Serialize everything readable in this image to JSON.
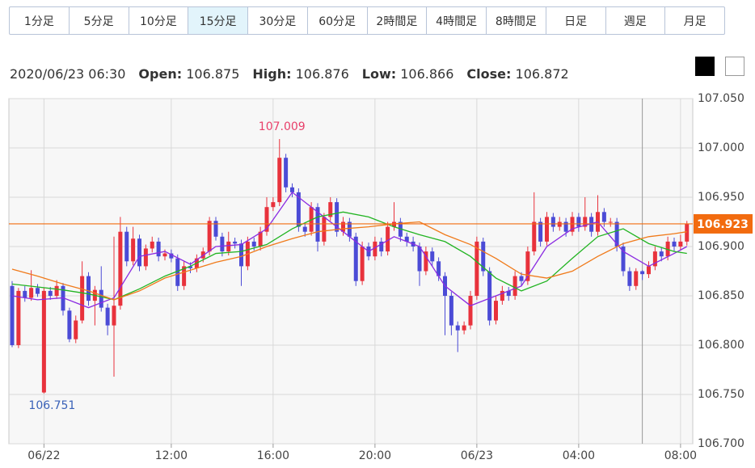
{
  "tabs": {
    "items": [
      "1分足",
      "5分足",
      "10分足",
      "15分足",
      "30分足",
      "60分足",
      "2時間足",
      "4時間足",
      "8時間足",
      "日足",
      "週足",
      "月足"
    ],
    "active": "15分足"
  },
  "info": {
    "datetime": "2020/06/23 06:30",
    "labels": [
      "Open:",
      "High:",
      "Low:",
      "Close:"
    ]
  },
  "chart_data": {
    "type": "candlestick",
    "up_color": "#e8323c",
    "down_color": "#4b4bd6",
    "x": [
      "06/22 05:45",
      "06/22 06:00",
      "06/22 06:15",
      "06/22 06:30",
      "06/22 06:45",
      "06/22 07:00",
      "06/22 07:15",
      "06/22 07:30",
      "06/22 07:45",
      "06/22 08:00",
      "06/22 08:15",
      "06/22 08:30",
      "06/22 08:45",
      "06/22 09:00",
      "06/22 09:15",
      "06/22 09:30",
      "06/22 09:45",
      "06/22 10:00",
      "06/22 10:15",
      "06/22 10:30",
      "06/22 10:45",
      "06/22 11:00",
      "06/22 11:15",
      "06/22 11:30",
      "06/22 11:45",
      "06/22 12:00",
      "06/22 12:15",
      "06/22 12:30",
      "06/22 12:45",
      "06/22 13:00",
      "06/22 13:15",
      "06/22 13:30",
      "06/22 13:45",
      "06/22 14:00",
      "06/22 14:15",
      "06/22 14:30",
      "06/22 14:45",
      "06/22 15:00",
      "06/22 15:15",
      "06/22 15:30",
      "06/22 15:45",
      "06/22 16:00",
      "06/22 16:15",
      "06/22 16:30",
      "06/22 16:45",
      "06/22 17:00",
      "06/22 17:15",
      "06/22 17:30",
      "06/22 17:45",
      "06/22 18:00",
      "06/22 18:15",
      "06/22 18:30",
      "06/22 18:45",
      "06/22 19:00",
      "06/22 19:15",
      "06/22 19:30",
      "06/22 19:45",
      "06/22 20:00",
      "06/22 20:15",
      "06/22 20:30",
      "06/22 20:45",
      "06/22 21:00",
      "06/22 21:15",
      "06/22 21:30",
      "06/22 21:45",
      "06/22 22:00",
      "06/22 22:15",
      "06/22 22:30",
      "06/22 22:45",
      "06/22 23:00",
      "06/22 23:15",
      "06/22 23:30",
      "06/22 23:45",
      "06/23 00:00",
      "06/23 00:15",
      "06/23 00:30",
      "06/23 00:45",
      "06/23 01:00",
      "06/23 01:15",
      "06/23 01:30",
      "06/23 01:45",
      "06/23 02:00",
      "06/23 02:15",
      "06/23 02:30",
      "06/23 02:45",
      "06/23 03:00",
      "06/23 03:15",
      "06/23 03:30",
      "06/23 03:45",
      "06/23 04:00",
      "06/23 04:15",
      "06/23 04:30",
      "06/23 04:45",
      "06/23 05:00",
      "06/23 05:15",
      "06/23 05:30",
      "06/23 05:45",
      "06/23 06:00",
      "06/23 06:15",
      "06/23 06:30",
      "06/23 06:45",
      "06/23 07:00",
      "06/23 07:15",
      "06/23 07:30",
      "06/23 07:45",
      "06/23 08:00",
      "06/23 08:15"
    ],
    "candles": [
      [
        106.86,
        106.865,
        106.798,
        106.8
      ],
      [
        106.8,
        106.858,
        106.797,
        106.855
      ],
      [
        106.855,
        106.86,
        106.844,
        106.848
      ],
      [
        106.848,
        106.876,
        106.845,
        106.858
      ],
      [
        106.858,
        106.862,
        106.849,
        106.852
      ],
      [
        106.752,
        106.858,
        106.751,
        106.855
      ],
      [
        106.855,
        106.859,
        106.846,
        106.85
      ],
      [
        106.85,
        106.866,
        106.847,
        106.86
      ],
      [
        106.86,
        106.863,
        106.83,
        106.835
      ],
      [
        106.835,
        106.838,
        106.803,
        106.806
      ],
      [
        106.806,
        106.83,
        106.802,
        106.825
      ],
      [
        106.825,
        106.885,
        106.822,
        106.87
      ],
      [
        106.87,
        106.874,
        106.84,
        106.845
      ],
      [
        106.845,
        106.86,
        106.82,
        106.856
      ],
      [
        106.856,
        106.88,
        106.834,
        106.838
      ],
      [
        106.838,
        106.842,
        106.81,
        106.82
      ],
      [
        106.82,
        106.91,
        106.768,
        106.84
      ],
      [
        106.84,
        106.93,
        106.836,
        106.915
      ],
      [
        106.915,
        106.92,
        106.88,
        106.885
      ],
      [
        106.885,
        106.92,
        106.881,
        106.908
      ],
      [
        106.908,
        106.912,
        106.875,
        106.88
      ],
      [
        106.88,
        106.902,
        106.876,
        106.898
      ],
      [
        106.898,
        106.91,
        106.894,
        106.905
      ],
      [
        106.905,
        106.909,
        106.885,
        106.89
      ],
      [
        106.89,
        106.897,
        106.886,
        106.893
      ],
      [
        106.893,
        106.897,
        106.884,
        106.888
      ],
      [
        106.888,
        106.892,
        106.855,
        106.86
      ],
      [
        106.86,
        106.885,
        106.856,
        106.88
      ],
      [
        106.88,
        106.884,
        106.873,
        106.878
      ],
      [
        106.878,
        106.892,
        106.874,
        106.888
      ],
      [
        106.888,
        106.899,
        106.884,
        106.895
      ],
      [
        106.895,
        106.93,
        106.891,
        106.926
      ],
      [
        106.926,
        106.93,
        106.906,
        106.91
      ],
      [
        106.91,
        106.914,
        106.89,
        106.895
      ],
      [
        106.895,
        106.915,
        106.891,
        106.905
      ],
      [
        106.905,
        106.909,
        106.898,
        106.903
      ],
      [
        106.903,
        106.907,
        106.86,
        106.88
      ],
      [
        106.88,
        106.91,
        106.876,
        106.905
      ],
      [
        106.905,
        106.909,
        106.896,
        106.9
      ],
      [
        106.9,
        106.92,
        106.896,
        106.915
      ],
      [
        106.915,
        106.95,
        106.911,
        106.94
      ],
      [
        106.94,
        106.95,
        106.936,
        106.945
      ],
      [
        106.945,
        107.009,
        106.941,
        106.99
      ],
      [
        106.99,
        106.994,
        106.955,
        106.96
      ],
      [
        106.96,
        106.964,
        106.95,
        106.955
      ],
      [
        106.955,
        106.959,
        106.915,
        106.92
      ],
      [
        106.92,
        106.924,
        106.91,
        106.915
      ],
      [
        106.915,
        106.945,
        106.911,
        106.94
      ],
      [
        106.94,
        106.944,
        106.895,
        106.905
      ],
      [
        106.905,
        106.934,
        106.901,
        106.93
      ],
      [
        106.93,
        106.95,
        106.926,
        106.945
      ],
      [
        106.945,
        106.949,
        106.91,
        106.915
      ],
      [
        106.915,
        106.93,
        106.911,
        106.925
      ],
      [
        106.925,
        106.929,
        106.905,
        106.91
      ],
      [
        106.91,
        106.914,
        106.86,
        106.865
      ],
      [
        106.865,
        106.905,
        106.861,
        106.9
      ],
      [
        106.9,
        106.904,
        106.886,
        106.89
      ],
      [
        106.89,
        106.91,
        106.886,
        106.905
      ],
      [
        106.905,
        106.909,
        106.89,
        106.895
      ],
      [
        106.895,
        106.925,
        106.891,
        106.92
      ],
      [
        106.92,
        106.945,
        106.916,
        106.925
      ],
      [
        106.925,
        106.929,
        106.905,
        106.91
      ],
      [
        106.91,
        106.914,
        106.9,
        106.905
      ],
      [
        106.905,
        106.91,
        106.895,
        106.9
      ],
      [
        106.9,
        106.904,
        106.86,
        106.875
      ],
      [
        106.875,
        106.9,
        106.871,
        106.895
      ],
      [
        106.895,
        106.899,
        106.88,
        106.885
      ],
      [
        106.885,
        106.889,
        106.865,
        106.87
      ],
      [
        106.87,
        106.874,
        106.81,
        106.85
      ],
      [
        106.85,
        106.854,
        106.81,
        106.82
      ],
      [
        106.82,
        106.824,
        106.793,
        106.815
      ],
      [
        106.815,
        106.824,
        106.811,
        106.82
      ],
      [
        106.82,
        106.855,
        106.816,
        106.85
      ],
      [
        106.85,
        106.91,
        106.846,
        106.905
      ],
      [
        106.905,
        106.909,
        106.87,
        106.875
      ],
      [
        106.875,
        106.879,
        106.82,
        106.825
      ],
      [
        106.825,
        106.85,
        106.821,
        106.845
      ],
      [
        106.845,
        106.86,
        106.841,
        106.855
      ],
      [
        106.855,
        106.859,
        106.845,
        106.85
      ],
      [
        106.85,
        106.875,
        106.846,
        106.87
      ],
      [
        106.87,
        106.874,
        106.86,
        106.865
      ],
      [
        106.865,
        106.9,
        106.861,
        106.895
      ],
      [
        106.895,
        106.955,
        106.891,
        106.925
      ],
      [
        106.925,
        106.929,
        106.9,
        106.905
      ],
      [
        106.905,
        106.935,
        106.901,
        106.93
      ],
      [
        106.93,
        106.934,
        106.915,
        106.92
      ],
      [
        106.92,
        106.93,
        106.916,
        106.925
      ],
      [
        106.925,
        106.929,
        106.91,
        106.915
      ],
      [
        106.915,
        106.935,
        106.911,
        106.93
      ],
      [
        106.93,
        106.934,
        106.915,
        106.92
      ],
      [
        106.92,
        106.95,
        106.916,
        106.93
      ],
      [
        106.93,
        106.934,
        106.91,
        106.915
      ],
      [
        106.915,
        106.952,
        106.911,
        106.935
      ],
      [
        106.935,
        106.939,
        106.92,
        106.925
      ],
      [
        106.925,
        106.929,
        106.92,
        106.925
      ],
      [
        106.925,
        106.929,
        106.895,
        106.9
      ],
      [
        106.9,
        106.904,
        106.87,
        106.875
      ],
      [
        106.875,
        106.879,
        106.855,
        106.86
      ],
      [
        106.86,
        106.878,
        106.856,
        106.875
      ],
      [
        106.875,
        106.876,
        106.866,
        106.872
      ],
      [
        106.872,
        106.885,
        106.868,
        106.88
      ],
      [
        106.88,
        106.9,
        106.876,
        106.895
      ],
      [
        106.895,
        106.899,
        106.885,
        106.89
      ],
      [
        106.89,
        106.91,
        106.886,
        106.905
      ],
      [
        106.905,
        106.909,
        106.895,
        106.9
      ],
      [
        106.9,
        106.912,
        106.896,
        106.905
      ],
      [
        106.905,
        106.926,
        106.901,
        106.923
      ]
    ],
    "series": [
      {
        "color": "#8b2be2",
        "x": [
          "06/22 05:45",
          "06/22 06:45",
          "06/22 07:45",
          "06/22 08:45",
          "06/22 09:45",
          "06/22 10:45",
          "06/22 11:45",
          "06/22 12:45",
          "06/22 13:45",
          "06/22 14:45",
          "06/22 15:45",
          "06/22 16:45",
          "06/22 17:45",
          "06/22 18:45",
          "06/22 19:45",
          "06/22 20:45",
          "06/22 21:45",
          "06/22 22:45",
          "06/22 23:45",
          "06/23 00:45",
          "06/23 01:45",
          "06/23 02:45",
          "06/23 03:45",
          "06/23 04:45",
          "06/23 05:45",
          "06/23 06:45",
          "06/23 07:45",
          "06/23 08:15"
        ],
        "values": [
          106.85,
          106.846,
          106.848,
          106.838,
          106.848,
          106.89,
          106.895,
          106.882,
          106.9,
          106.902,
          106.918,
          106.955,
          106.935,
          106.915,
          106.895,
          106.91,
          106.9,
          106.86,
          106.84,
          106.85,
          106.86,
          106.9,
          106.918,
          106.925,
          106.895,
          106.88,
          106.893,
          106.9
        ]
      },
      {
        "color": "#22b422",
        "x": [
          "06/22 05:45",
          "06/22 06:45",
          "06/22 07:45",
          "06/22 08:45",
          "06/22 09:45",
          "06/22 10:45",
          "06/22 11:45",
          "06/22 12:45",
          "06/22 13:45",
          "06/22 14:45",
          "06/22 15:45",
          "06/22 16:45",
          "06/22 17:45",
          "06/22 18:45",
          "06/22 19:45",
          "06/22 20:45",
          "06/22 21:45",
          "06/22 22:45",
          "06/22 23:45",
          "06/23 00:45",
          "06/23 01:45",
          "06/23 02:45",
          "06/23 03:45",
          "06/23 04:45",
          "06/23 05:45",
          "06/23 06:45",
          "06/23 07:45",
          "06/23 08:15"
        ],
        "values": [
          106.862,
          106.859,
          106.856,
          106.852,
          106.846,
          106.857,
          106.87,
          106.88,
          106.893,
          106.895,
          106.902,
          106.918,
          106.93,
          106.935,
          106.93,
          106.92,
          106.912,
          106.905,
          106.89,
          106.868,
          106.855,
          106.865,
          106.888,
          106.91,
          106.918,
          106.903,
          106.895,
          106.893
        ]
      },
      {
        "color": "#f07a1a",
        "x": [
          "06/22 05:45",
          "06/22 06:45",
          "06/22 07:45",
          "06/22 08:45",
          "06/22 09:45",
          "06/22 10:45",
          "06/22 11:45",
          "06/22 12:45",
          "06/22 13:45",
          "06/22 14:45",
          "06/22 15:45",
          "06/22 16:45",
          "06/22 17:45",
          "06/22 18:45",
          "06/22 19:45",
          "06/22 20:45",
          "06/22 21:45",
          "06/22 22:45",
          "06/22 23:45",
          "06/23 00:45",
          "06/23 01:45",
          "06/23 02:45",
          "06/23 03:45",
          "06/23 04:45",
          "06/23 05:45",
          "06/23 06:45",
          "06/23 07:45",
          "06/23 08:15"
        ],
        "values": [
          106.877,
          106.87,
          106.862,
          106.855,
          106.846,
          106.855,
          106.868,
          106.876,
          106.884,
          106.89,
          106.9,
          106.908,
          106.915,
          106.918,
          106.92,
          106.923,
          106.925,
          106.912,
          106.902,
          106.888,
          106.872,
          106.868,
          106.875,
          106.89,
          106.903,
          106.91,
          106.913,
          106.915
        ]
      }
    ],
    "last_price": 106.923,
    "last_price_color": "#f26b0f",
    "selected_x": "06/23 06:30",
    "annotations": [
      {
        "path": "chart_data.candles.42.1",
        "color": "#e8406a",
        "side": "above"
      },
      {
        "path": "chart_data.candles.5.2",
        "color": "#3a62b8",
        "side": "below"
      }
    ],
    "ylim": [
      106.7,
      107.05
    ],
    "yticks": [
      {
        "value": 106.7,
        "label": "106.700"
      },
      {
        "value": 106.75,
        "label": "106.750"
      },
      {
        "value": 106.8,
        "label": "106.800"
      },
      {
        "value": 106.85,
        "label": "106.850"
      },
      {
        "value": 106.9,
        "label": "106.900"
      },
      {
        "value": 106.95,
        "label": "106.950"
      },
      {
        "value": 107,
        "label": "107.000"
      },
      {
        "value": 107.05,
        "label": "107.050"
      }
    ],
    "xticks": [
      {
        "value": "06/22 07:00",
        "label": "06/22"
      },
      {
        "value": "06/22 12:00",
        "label": "12:00"
      },
      {
        "value": "06/22 16:00",
        "label": "16:00"
      },
      {
        "value": "06/22 20:00",
        "label": "20:00"
      },
      {
        "value": "06/23 00:00",
        "label": "06/23"
      },
      {
        "value": "06/23 04:00",
        "label": "04:00"
      },
      {
        "value": "06/23 08:00",
        "label": "08:00"
      }
    ],
    "grid": true
  }
}
